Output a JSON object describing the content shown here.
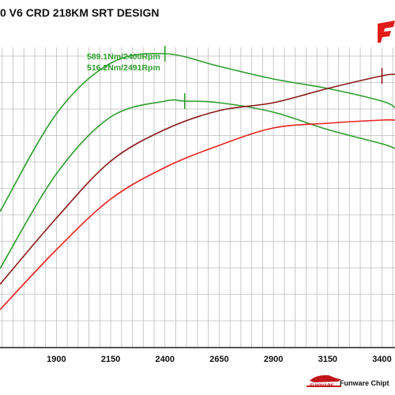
{
  "title": "0 V6 CRD 218KM SRT DESIGN",
  "footer_brand": "Funware Chipt",
  "logo_small_text": "FUNWARE",
  "chart_data": {
    "type": "line",
    "title": "0 V6 CRD 218KM SRT DESIGN",
    "xlabel": "",
    "ylabel": "",
    "x_ticks": [
      1900,
      2150,
      2400,
      2650,
      2900,
      3150,
      3400
    ],
    "xlim": [
      1640,
      3460
    ],
    "grid": true,
    "annotations": [
      {
        "text": "589.1Nm/2400Rpm",
        "x": 2400,
        "color": "#2e9e2e"
      },
      {
        "text": "516.2Nm/2491Rpm",
        "x": 2491,
        "color": "#2e9e2e"
      }
    ],
    "series": [
      {
        "color": "#2e9e2e",
        "x": [
          1640,
          1900,
          2150,
          2400,
          2650,
          2900,
          3150,
          3400,
          3460
        ],
        "y": [
          0.43,
          0.74,
          0.9,
          0.93,
          0.89,
          0.85,
          0.82,
          0.78,
          0.76
        ]
      },
      {
        "color": "#2e9e2e",
        "x": [
          1640,
          1900,
          2150,
          2400,
          2491,
          2650,
          2900,
          3150,
          3400,
          3460
        ],
        "y": [
          0.25,
          0.55,
          0.73,
          0.78,
          0.78,
          0.775,
          0.745,
          0.69,
          0.645,
          0.63
        ]
      },
      {
        "color": "#8b1a1a",
        "x": [
          1640,
          1900,
          2150,
          2400,
          2650,
          2900,
          3150,
          3400,
          3460
        ],
        "y": [
          0.2,
          0.41,
          0.59,
          0.69,
          0.75,
          0.775,
          0.82,
          0.86,
          0.865
        ]
      },
      {
        "color": "#e8231e",
        "x": [
          1640,
          1900,
          2150,
          2400,
          2650,
          2900,
          3150,
          3400,
          3460
        ],
        "y": [
          0.12,
          0.31,
          0.47,
          0.57,
          0.64,
          0.695,
          0.71,
          0.72,
          0.72
        ]
      }
    ]
  },
  "colors": {
    "grid": "#bdbdbd",
    "axis": "#000000",
    "logo_red": "#e21b1b"
  },
  "icons": {
    "logo": "funware-logo-icon",
    "car": "car-silhouette-icon"
  }
}
